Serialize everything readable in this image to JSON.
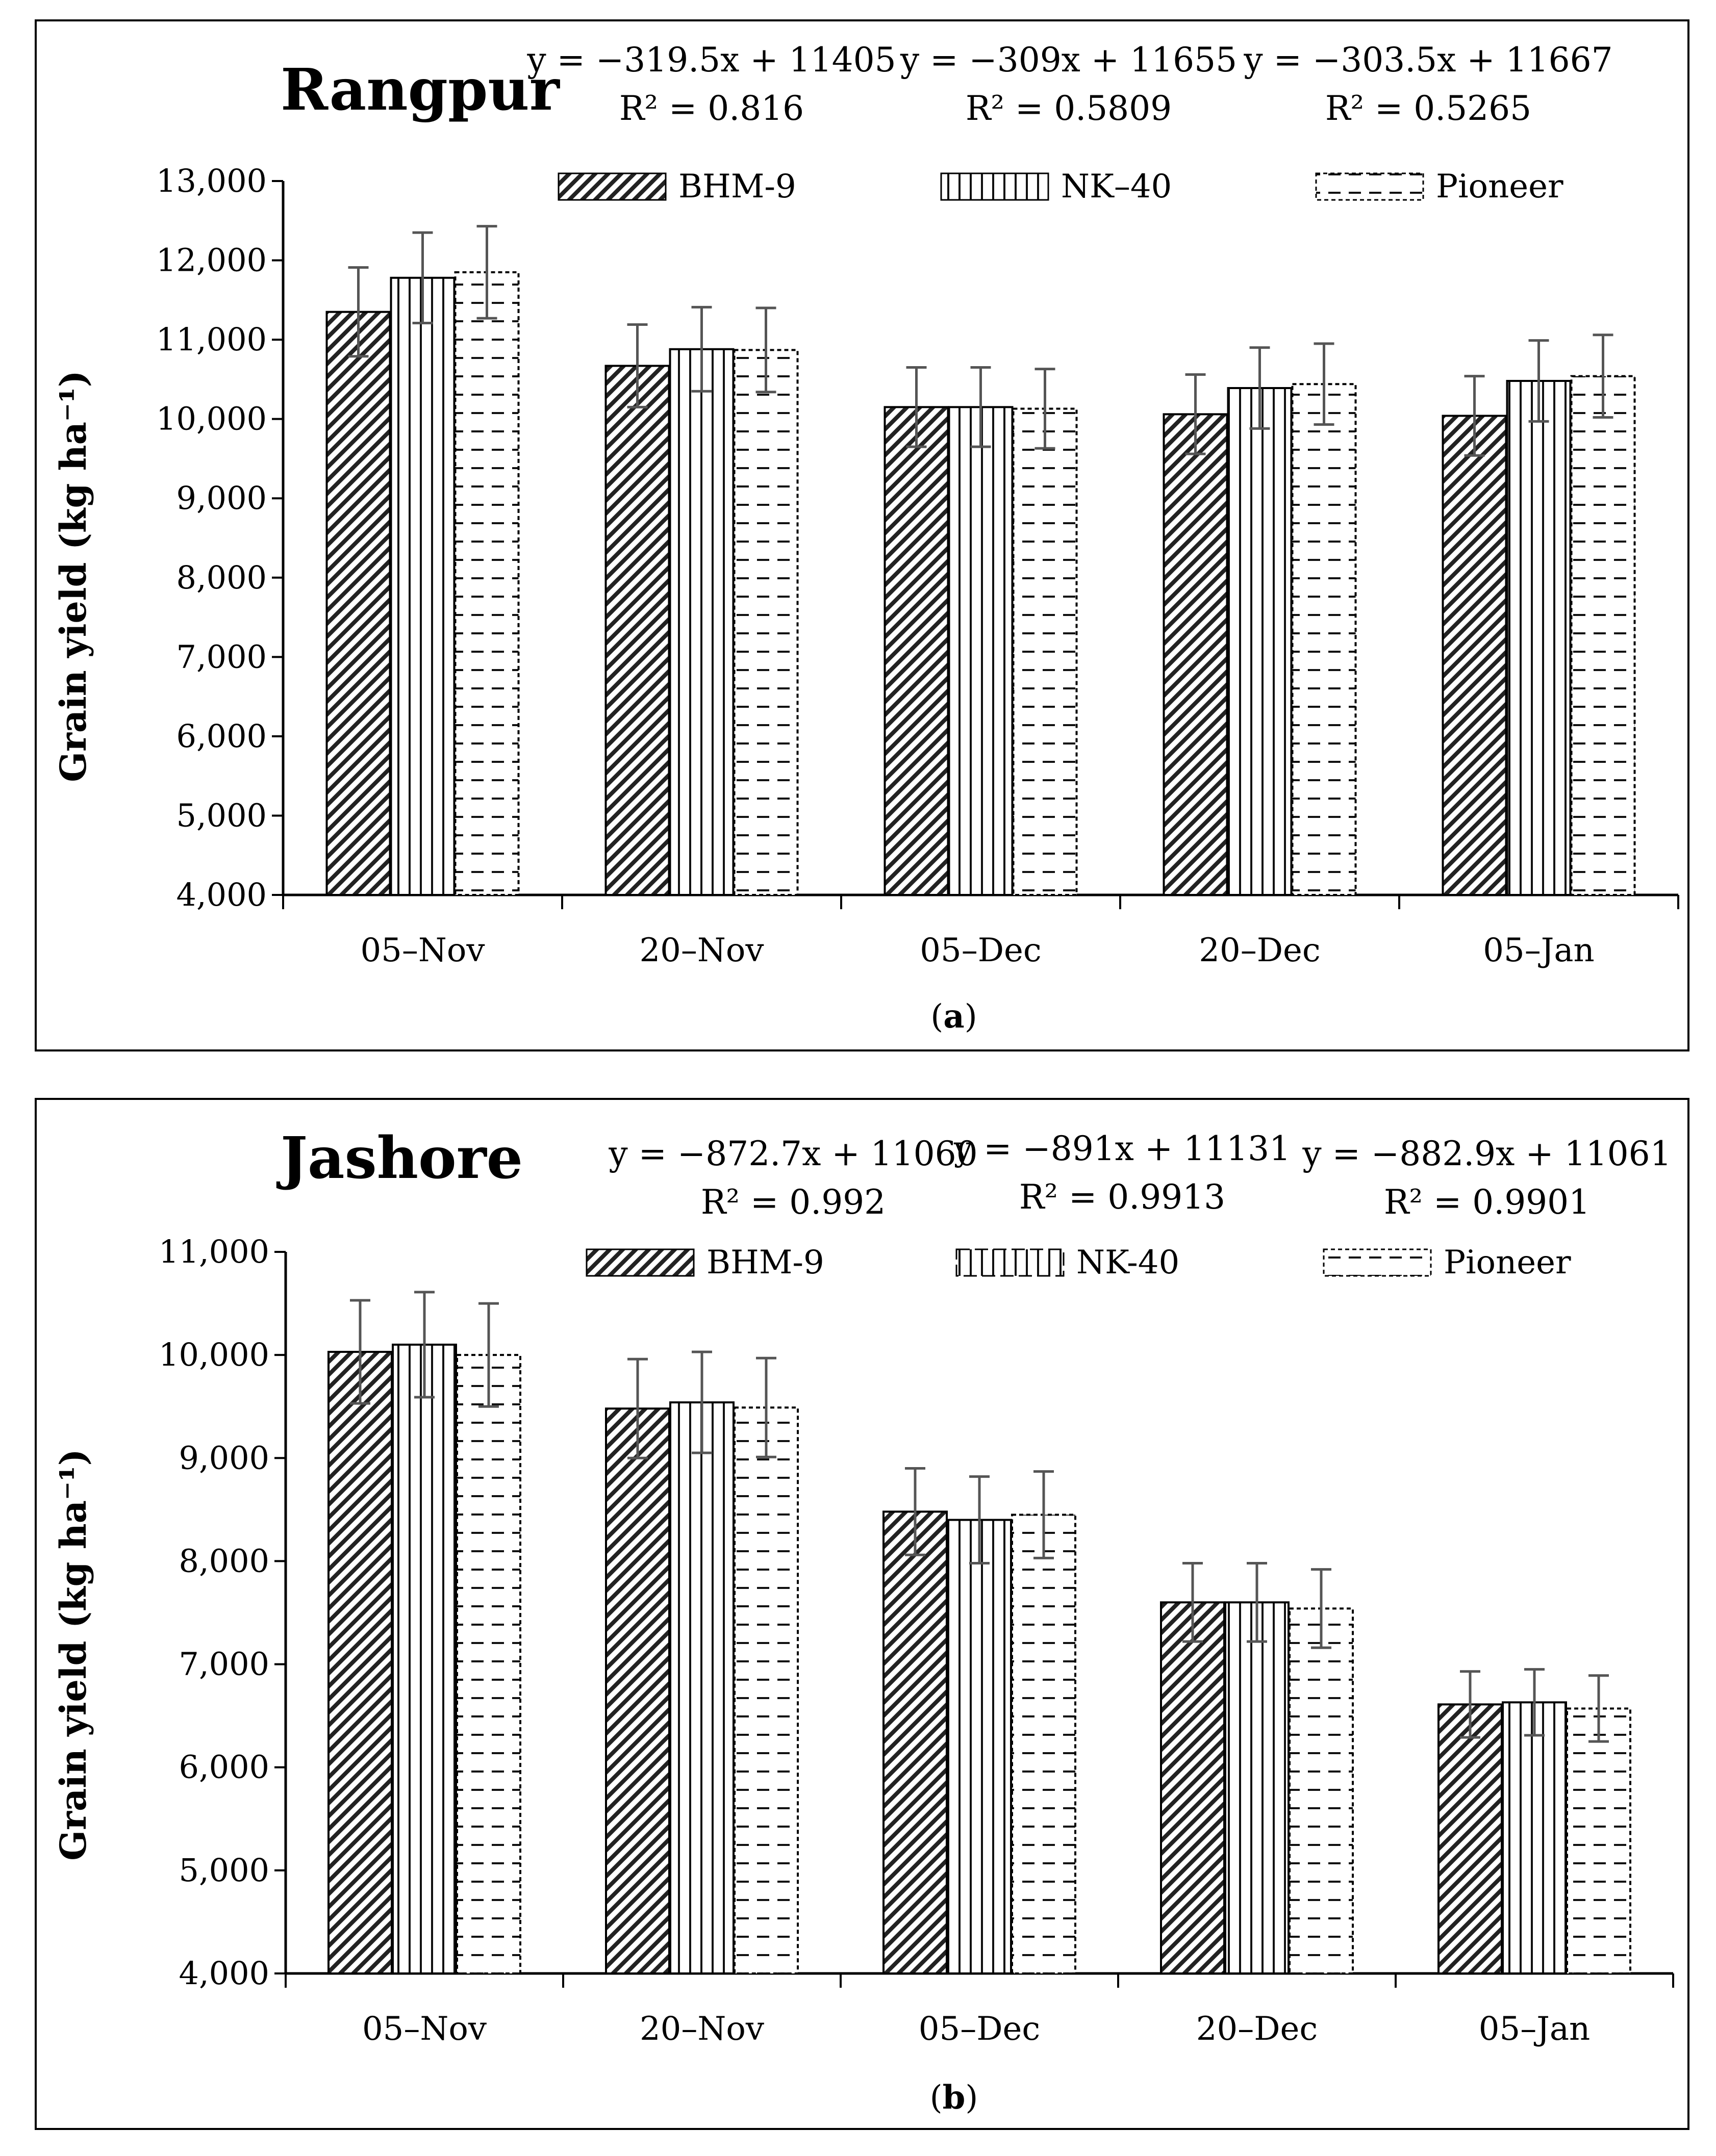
{
  "series_names": [
    "BHM-9",
    "NK–40",
    "Pioneer"
  ],
  "chart_data": [
    {
      "type": "bar",
      "title": "Rangpur",
      "caption_letter": "a",
      "ylabel": "Grain yield (kg ha⁻¹)",
      "xlabel": "",
      "ylim": [
        4000,
        13000
      ],
      "yticks": [
        4000,
        5000,
        6000,
        7000,
        8000,
        9000,
        10000,
        11000,
        12000,
        13000
      ],
      "ytick_labels": [
        "4,000",
        "5,000",
        "6,000",
        "7,000",
        "8,000",
        "9,000",
        "10,000",
        "11,000",
        "12,000",
        "13,000"
      ],
      "categories": [
        "05–Nov",
        "20–Nov",
        "05–Dec",
        "20–Dec",
        "05–Jan"
      ],
      "legend": [
        "BHM-9",
        "NK–40",
        "Pioneer"
      ],
      "series": [
        {
          "name": "BHM-9",
          "values": [
            11350,
            10670,
            10150,
            10060,
            10040
          ],
          "errors": [
            560,
            520,
            500,
            500,
            500
          ]
        },
        {
          "name": "NK–40",
          "values": [
            11780,
            10880,
            10150,
            10390,
            10480
          ],
          "errors": [
            570,
            530,
            500,
            510,
            510
          ]
        },
        {
          "name": "Pioneer",
          "values": [
            11850,
            10870,
            10130,
            10440,
            10540
          ],
          "errors": [
            580,
            530,
            500,
            510,
            520
          ]
        }
      ],
      "equations": [
        {
          "eq": "y = −319.5x + 11405",
          "r2": "R² = 0.816"
        },
        {
          "eq": "y = −309x + 11655",
          "r2": "R² = 0.5809"
        },
        {
          "eq": "y = −303.5x + 11667",
          "r2": "R² = 0.5265"
        }
      ],
      "grid": false
    },
    {
      "type": "bar",
      "title": "Jashore",
      "caption_letter": "b",
      "ylabel": "Grain yield (kg ha⁻¹)",
      "xlabel": "",
      "ylim": [
        4000,
        11000
      ],
      "yticks": [
        4000,
        5000,
        6000,
        7000,
        8000,
        9000,
        10000,
        11000
      ],
      "ytick_labels": [
        "4,000",
        "5,000",
        "6,000",
        "7,000",
        "8,000",
        "9,000",
        "10,000",
        "11,000"
      ],
      "categories": [
        "05–Nov",
        "20–Nov",
        "05–Dec",
        "20–Dec",
        "05–Jan"
      ],
      "legend": [
        "BHM-9",
        "NK-40",
        "Pioneer"
      ],
      "series": [
        {
          "name": "BHM-9",
          "values": [
            10030,
            9480,
            8480,
            7600,
            6610
          ],
          "errors": [
            500,
            480,
            420,
            380,
            320
          ]
        },
        {
          "name": "NK-40",
          "values": [
            10100,
            9540,
            8400,
            7600,
            6630
          ],
          "errors": [
            510,
            490,
            420,
            380,
            320
          ]
        },
        {
          "name": "Pioneer",
          "values": [
            10000,
            9490,
            8450,
            7540,
            6570
          ],
          "errors": [
            500,
            480,
            420,
            380,
            320
          ]
        }
      ],
      "equations": [
        {
          "eq": "y = −872.7x + 11060",
          "r2": "R² = 0.992"
        },
        {
          "eq": "y = −891x + 11131",
          "r2": "R² = 0.9913"
        },
        {
          "eq": "y = −882.9x + 11061",
          "r2": "R² = 0.9901"
        }
      ],
      "grid": false
    }
  ]
}
